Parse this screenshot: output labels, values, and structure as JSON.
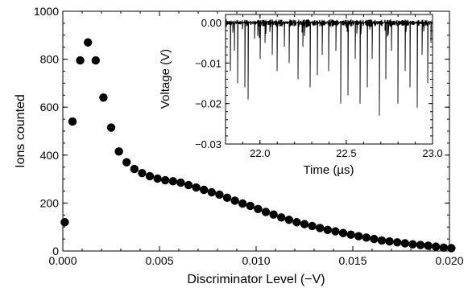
{
  "chart_data": [
    {
      "type": "scatter",
      "xlabel": "Discriminator Level (−V)",
      "ylabel": "Ions counted",
      "xlim": [
        0,
        0.02
      ],
      "ylim": [
        0,
        1000
      ],
      "xticks": [
        "0.000",
        "0.005",
        "0.010",
        "0.015",
        "0.020"
      ],
      "yticks": [
        "0",
        "200",
        "400",
        "600",
        "800",
        "1000"
      ],
      "marker": "filled-circle",
      "color": "#000000",
      "series": [
        {
          "x": [
            0.0001,
            0.0005,
            0.0009,
            0.0013,
            0.0017,
            0.0021,
            0.0025,
            0.0029,
            0.0033,
            0.0037,
            0.0041,
            0.0045,
            0.0049,
            0.0053,
            0.0057,
            0.0061,
            0.0065,
            0.0069,
            0.0073,
            0.0077,
            0.0081,
            0.0085,
            0.0089,
            0.0093,
            0.0097,
            0.0101,
            0.0105,
            0.0109,
            0.0113,
            0.0117,
            0.0121,
            0.0125,
            0.0129,
            0.0133,
            0.0137,
            0.0141,
            0.0145,
            0.0149,
            0.0153,
            0.0157,
            0.0161,
            0.0165,
            0.0169,
            0.0173,
            0.0177,
            0.0181,
            0.0185,
            0.0189,
            0.0193,
            0.0197,
            0.0201
          ],
          "y": [
            120,
            540,
            795,
            870,
            795,
            640,
            515,
            415,
            370,
            342,
            325,
            312,
            302,
            295,
            291,
            285,
            275,
            265,
            255,
            245,
            235,
            222,
            210,
            198,
            188,
            175,
            163,
            152,
            140,
            130,
            120,
            112,
            104,
            96,
            88,
            82,
            75,
            68,
            62,
            56,
            50,
            44,
            40,
            36,
            32,
            28,
            25,
            22,
            18,
            14,
            12
          ]
        }
      ]
    },
    {
      "type": "line",
      "xlabel": "Time (µs)",
      "ylabel": "Voltage (V)",
      "xlim": [
        21.8,
        23.0
      ],
      "ylim": [
        -0.03,
        0.002
      ],
      "xticks": [
        "22.0",
        "22.5",
        "23.0"
      ],
      "yticks": [
        "0.00",
        "−0.01",
        "−0.02",
        "−0.03"
      ],
      "baseline": 0.0,
      "noise": 0.0009,
      "color": "#000000",
      "spikes": [
        {
          "t": 21.83,
          "v": -0.012
        },
        {
          "t": 21.85,
          "v": -0.007
        },
        {
          "t": 21.87,
          "v": -0.015
        },
        {
          "t": 21.91,
          "v": -0.016
        },
        {
          "t": 21.93,
          "v": -0.019
        },
        {
          "t": 21.97,
          "v": -0.004
        },
        {
          "t": 22.0,
          "v": -0.009
        },
        {
          "t": 22.03,
          "v": -0.005
        },
        {
          "t": 22.07,
          "v": -0.008
        },
        {
          "t": 22.1,
          "v": -0.012
        },
        {
          "t": 22.14,
          "v": -0.006
        },
        {
          "t": 22.17,
          "v": -0.01
        },
        {
          "t": 22.22,
          "v": -0.014
        },
        {
          "t": 22.25,
          "v": -0.006
        },
        {
          "t": 22.29,
          "v": -0.016
        },
        {
          "t": 22.33,
          "v": -0.013
        },
        {
          "t": 22.36,
          "v": -0.008
        },
        {
          "t": 22.4,
          "v": -0.012
        },
        {
          "t": 22.44,
          "v": -0.007
        },
        {
          "t": 22.47,
          "v": -0.02
        },
        {
          "t": 22.51,
          "v": -0.018
        },
        {
          "t": 22.55,
          "v": -0.009
        },
        {
          "t": 22.58,
          "v": -0.02
        },
        {
          "t": 22.62,
          "v": -0.016
        },
        {
          "t": 22.65,
          "v": -0.009
        },
        {
          "t": 22.69,
          "v": -0.023
        },
        {
          "t": 22.73,
          "v": -0.014
        },
        {
          "t": 22.76,
          "v": -0.007
        },
        {
          "t": 22.8,
          "v": -0.02
        },
        {
          "t": 22.84,
          "v": -0.012
        },
        {
          "t": 22.87,
          "v": -0.016
        },
        {
          "t": 22.91,
          "v": -0.021
        },
        {
          "t": 22.94,
          "v": -0.008
        },
        {
          "t": 22.97,
          "v": -0.015
        },
        {
          "t": 22.99,
          "v": -0.005
        }
      ]
    }
  ]
}
